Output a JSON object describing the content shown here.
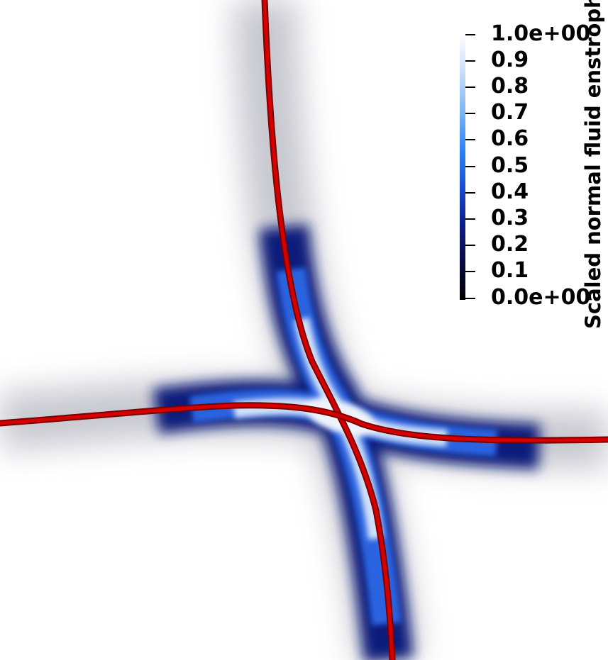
{
  "colorbar": {
    "title": "Scaled normal fluid enstrophy",
    "ticks": [
      "1.0e+00",
      "0.9",
      "0.8",
      "0.7",
      "0.6",
      "0.5",
      "0.4",
      "0.3",
      "0.2",
      "0.1",
      "0.0e+00"
    ],
    "range": [
      0.0,
      1.0
    ],
    "colors": [
      "#000000",
      "#0a0a40",
      "#0d1e8c",
      "#1a4fd6",
      "#2f86f5",
      "#7db6f5",
      "#c9dff7",
      "#ffffff"
    ]
  },
  "scene": {
    "background_color": "#ffffff",
    "vortex_line_color": "#cc0000",
    "vortex_line_count": 2
  }
}
